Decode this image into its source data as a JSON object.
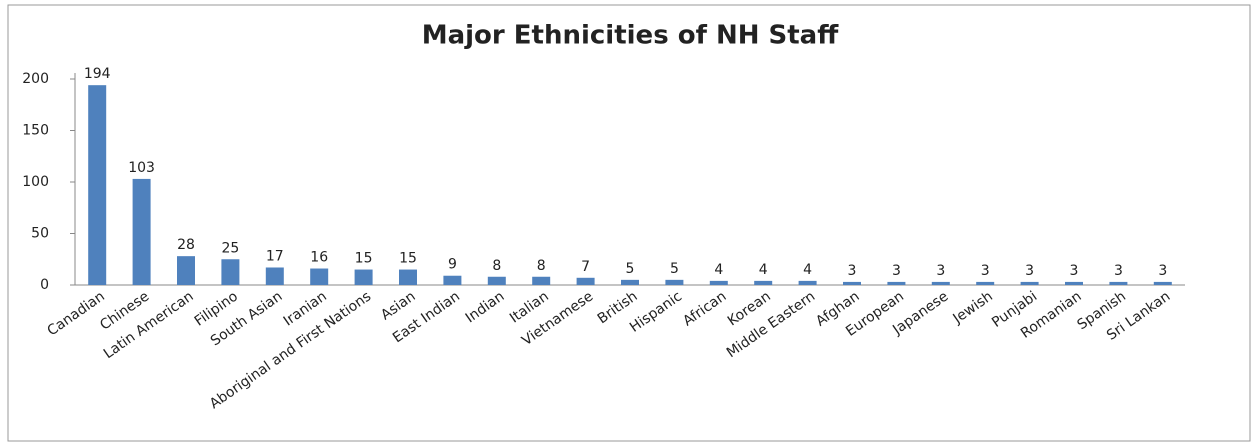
{
  "chart_data": {
    "type": "bar",
    "title": "Major Ethnicities of NH Staff",
    "categories": [
      "Canadian",
      "Chinese",
      "Latin American",
      "Filipino",
      "South Asian",
      "Iranian",
      "Aboriginal and First Nations",
      "Asian",
      "East Indian",
      "Indian",
      "Italian",
      "Vietnamese",
      "British",
      "Hispanic",
      "African",
      "Korean",
      "Middle Eastern",
      "Afghan",
      "European",
      "Japanese",
      "Jewish",
      "Punjabi",
      "Romanian",
      "Spanish",
      "Sri Lankan"
    ],
    "values": [
      194,
      103,
      28,
      25,
      17,
      16,
      15,
      15,
      9,
      8,
      8,
      7,
      5,
      5,
      4,
      4,
      4,
      3,
      3,
      3,
      3,
      3,
      3,
      3,
      3
    ],
    "color": "#4f81bd",
    "ylim": [
      0,
      200
    ],
    "yticks": [
      0,
      50,
      100,
      150,
      200
    ],
    "grid": false
  }
}
